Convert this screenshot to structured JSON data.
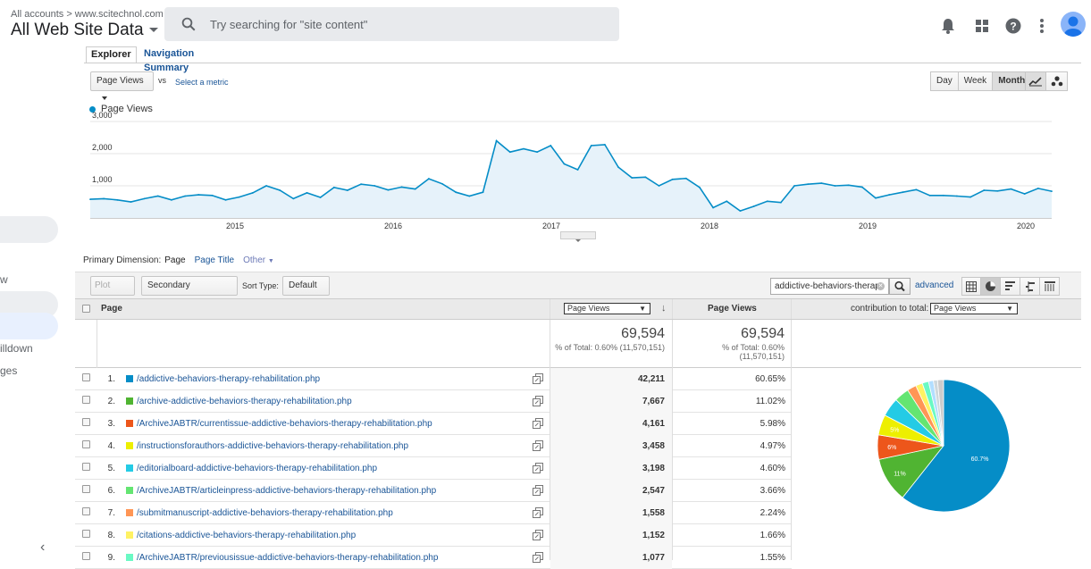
{
  "header": {
    "breadcrumb_root": "All accounts",
    "breadcrumb_sep": ">",
    "breadcrumb_site": "www.scitechnol.com",
    "view_title": "All Web Site Data",
    "search_placeholder": "Try searching for \"site content\""
  },
  "leftnav": {
    "partial_items": [
      "w",
      "illdown",
      "ges"
    ]
  },
  "explorer": {
    "tabs": [
      "Explorer",
      "Navigation Summary"
    ],
    "metric_select": "Page Views",
    "vs_label": "vs",
    "select_metric_link": "Select a metric",
    "period_buttons": [
      "Day",
      "Week",
      "Month"
    ],
    "active_period": "Month",
    "legend_label": "Page Views"
  },
  "chart_data": {
    "type": "area",
    "series": [
      {
        "name": "Page Views",
        "color": "#058dc7",
        "values": [
          580,
          600,
          560,
          500,
          600,
          680,
          560,
          680,
          720,
          700,
          560,
          650,
          780,
          1000,
          860,
          600,
          780,
          640,
          950,
          860,
          1050,
          1000,
          870,
          960,
          900,
          1220,
          1060,
          800,
          680,
          800,
          2400,
          2050,
          2150,
          2050,
          2250,
          1680,
          1500,
          2250,
          2280,
          1580,
          1250,
          1270,
          1000,
          1200,
          1230,
          950,
          320,
          520,
          220,
          360,
          520,
          480,
          1000,
          1050,
          1080,
          1000,
          1020,
          960,
          620,
          720,
          800,
          880,
          700,
          700,
          680,
          650,
          860,
          840,
          900,
          750,
          920,
          830
        ]
      }
    ],
    "x_tick_labels": [
      "2015",
      "2016",
      "2017",
      "2018",
      "2019",
      "2020"
    ],
    "y_tick_labels": [
      "1,000",
      "2,000",
      "3,000"
    ],
    "ylim": [
      0,
      3000
    ],
    "grid": true
  },
  "dimensions": {
    "label": "Primary Dimension:",
    "current": "Page",
    "options": [
      "Page Title",
      "Other"
    ]
  },
  "toolbar": {
    "plot_rows": "Plot Rows",
    "secondary_dimension": "Secondary dimension",
    "sort_type_label": "Sort Type:",
    "sort_type_value": "Default",
    "filter_value": "addictive-behaviors-therap",
    "advanced_link": "advanced"
  },
  "table": {
    "col_page": "Page",
    "col_metric_select": "Page Views",
    "col_page_views": "Page Views",
    "col_contribution": "contribution to total:",
    "contribution_select": "Page Views",
    "totals": {
      "value1": "69,594",
      "pct1": "% of Total: 0.60% (11,570,151)",
      "value2": "69,594",
      "pct2_line1": "% of Total: 0.60%",
      "pct2_line2": "(11,570,151)"
    },
    "rows": [
      {
        "num": "1.",
        "color": "#058dc7",
        "page": "/addictive-behaviors-therapy-rehabilitation.php",
        "views": "42,211",
        "pct": "60.65%"
      },
      {
        "num": "2.",
        "color": "#50b432",
        "page": "/archive-addictive-behaviors-therapy-rehabilitation.php",
        "views": "7,667",
        "pct": "11.02%"
      },
      {
        "num": "3.",
        "color": "#ed561b",
        "page": "/ArchiveJABTR/currentissue-addictive-behaviors-therapy-rehabilitation.php",
        "views": "4,161",
        "pct": "5.98%"
      },
      {
        "num": "4.",
        "color": "#edef00",
        "page": "/instructionsforauthors-addictive-behaviors-therapy-rehabilitation.php",
        "views": "3,458",
        "pct": "4.97%"
      },
      {
        "num": "5.",
        "color": "#24cbe5",
        "page": "/editorialboard-addictive-behaviors-therapy-rehabilitation.php",
        "views": "3,198",
        "pct": "4.60%"
      },
      {
        "num": "6.",
        "color": "#64e572",
        "page": "/ArchiveJABTR/articleinpress-addictive-behaviors-therapy-rehabilitation.php",
        "views": "2,547",
        "pct": "3.66%"
      },
      {
        "num": "7.",
        "color": "#ff9655",
        "page": "/submitmanuscript-addictive-behaviors-therapy-rehabilitation.php",
        "views": "1,558",
        "pct": "2.24%"
      },
      {
        "num": "8.",
        "color": "#fff263",
        "page": "/citations-addictive-behaviors-therapy-rehabilitation.php",
        "views": "1,152",
        "pct": "1.66%"
      },
      {
        "num": "9.",
        "color": "#6af9c4",
        "page": "/ArchiveJABTR/previousissue-addictive-behaviors-therapy-rehabilitation.php",
        "views": "1,077",
        "pct": "1.55%"
      }
    ],
    "pie": {
      "slices": [
        60.65,
        11.02,
        5.98,
        4.97,
        4.6,
        3.66,
        2.24,
        1.66,
        1.55,
        1.2,
        1.0,
        1.47
      ],
      "colors": [
        "#058dc7",
        "#50b432",
        "#ed561b",
        "#edef00",
        "#24cbe5",
        "#64e572",
        "#ff9655",
        "#fff263",
        "#6af9c4",
        "#b2deff",
        "#cfd8dc",
        "#cccccc"
      ],
      "labels": [
        "60.7%",
        "11%",
        "6%",
        "5%"
      ]
    }
  }
}
